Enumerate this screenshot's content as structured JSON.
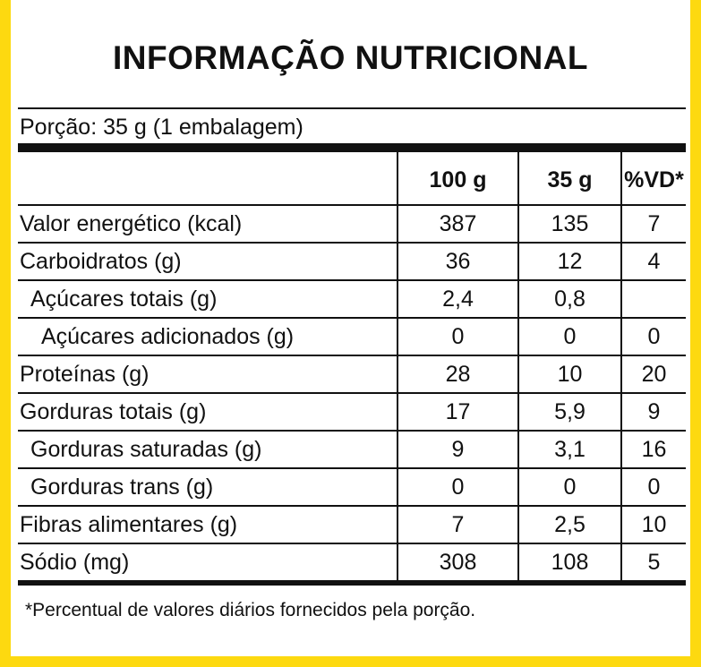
{
  "title": "INFORMAÇÃO NUTRICIONAL",
  "portion": "Porção: 35 g (1 embalagem)",
  "columns": [
    "",
    "100 g",
    "35 g",
    "%VD*"
  ],
  "rows": [
    {
      "label": "Valor energético (kcal)",
      "indent": 0,
      "v100": "387",
      "v35": "135",
      "vd": "7"
    },
    {
      "label": "Carboidratos (g)",
      "indent": 0,
      "v100": "36",
      "v35": "12",
      "vd": "4"
    },
    {
      "label": "Açúcares totais (g)",
      "indent": 1,
      "v100": "2,4",
      "v35": "0,8",
      "vd": ""
    },
    {
      "label": "Açúcares adicionados (g)",
      "indent": 2,
      "v100": "0",
      "v35": "0",
      "vd": "0"
    },
    {
      "label": "Proteínas (g)",
      "indent": 0,
      "v100": "28",
      "v35": "10",
      "vd": "20"
    },
    {
      "label": "Gorduras totais (g)",
      "indent": 0,
      "v100": "17",
      "v35": "5,9",
      "vd": "9"
    },
    {
      "label": "Gorduras saturadas (g)",
      "indent": 1,
      "v100": "9",
      "v35": "3,1",
      "vd": "16"
    },
    {
      "label": "Gorduras trans (g)",
      "indent": 1,
      "v100": "0",
      "v35": "0",
      "vd": "0"
    },
    {
      "label": "Fibras alimentares (g)",
      "indent": 0,
      "v100": "7",
      "v35": "2,5",
      "vd": "10"
    },
    {
      "label": "Sódio (mg)",
      "indent": 0,
      "v100": "308",
      "v35": "108",
      "vd": "5"
    }
  ],
  "footnote": "*Percentual de valores diários fornecidos pela porção.",
  "colors": {
    "border": "#fdd910",
    "text": "#111111"
  }
}
